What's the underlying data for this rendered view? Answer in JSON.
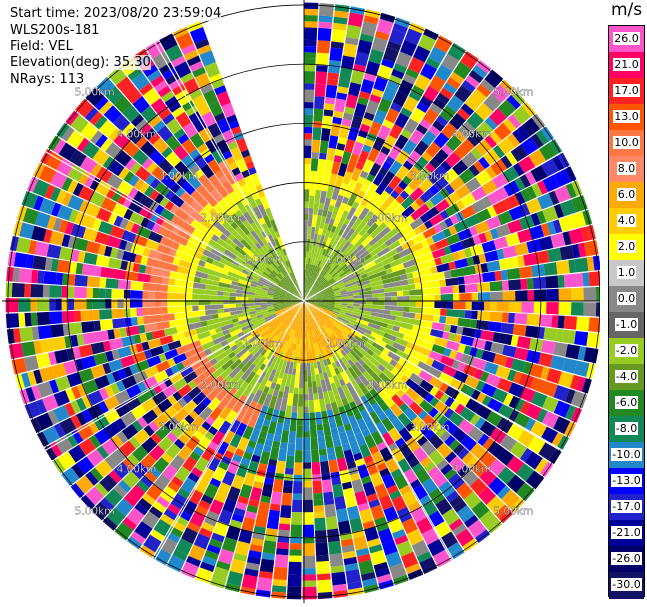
{
  "header": {
    "start_time": "Start time: 2023/08/20 23:59:04",
    "instrument": "WLS200s-181",
    "field": "Field: VEL",
    "elevation": "Elevation(deg): 35.30",
    "nrays": "NRays: 113"
  },
  "colorbar": {
    "unit": "m/s",
    "levels": [
      "26.0",
      "21.0",
      "17.0",
      "13.0",
      "10.0",
      "8.0",
      "6.0",
      "4.0",
      "2.0",
      "1.0",
      "0.0",
      "-1.0",
      "-2.0",
      "-4.0",
      "-6.0",
      "-8.0",
      "-10.0",
      "-13.0",
      "-17.0",
      "-21.0",
      "-26.0",
      "-30.0"
    ],
    "colors": [
      "#ff55cc",
      "#ff0066",
      "#ff2222",
      "#ff5500",
      "#ff7744",
      "#ff8866",
      "#ffaa00",
      "#ffcc00",
      "#ffff00",
      "#c8c8c8",
      "#888888",
      "#666666",
      "#99cc22",
      "#669922",
      "#228822",
      "#118855",
      "#2288cc",
      "#0000ff",
      "#2222cc",
      "#000099",
      "#000066",
      "#111166"
    ]
  },
  "chart_data": {
    "type": "polar_ppi",
    "field": "VEL",
    "unit": "m/s",
    "elevation_deg": 35.3,
    "n_rays": 113,
    "range_ring_labels": [
      "1.00km",
      "2.00km",
      "3.00km",
      "4.00km",
      "5.00km"
    ],
    "range_rings_km": [
      1,
      2,
      3,
      4,
      5
    ],
    "max_range_km": 5.1,
    "missing_sector_deg": [
      340,
      359
    ],
    "value_range": [
      -30,
      26
    ]
  }
}
